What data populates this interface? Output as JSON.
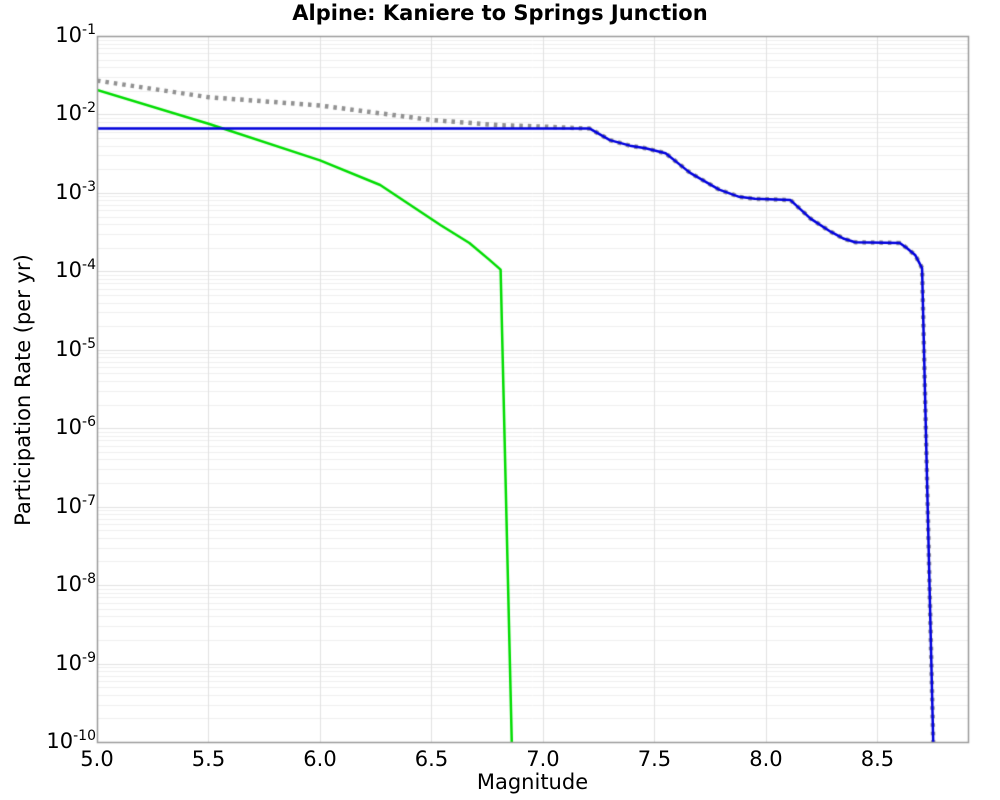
{
  "chart_data": {
    "type": "line",
    "title": "Alpine: Kaniere to Springs Junction",
    "xlabel": "Magnitude",
    "ylabel": "Participation Rate (per yr)",
    "xlim": [
      5.0,
      8.906
    ],
    "ylim": [
      1e-10,
      0.1
    ],
    "ylim_exp": [
      -10,
      -1
    ],
    "yscale": "log",
    "grid": true,
    "legend": "none",
    "x_ticks": [
      5.0,
      5.5,
      6.0,
      6.5,
      7.0,
      7.5,
      8.0,
      8.5
    ],
    "x_tick_labels": [
      "5.0",
      "5.5",
      "6.0",
      "6.5",
      "7.0",
      "7.5",
      "8.0",
      "8.5"
    ],
    "y_tick_base": "10",
    "y_tick_exponents": [
      -1,
      -2,
      -3,
      -4,
      -5,
      -6,
      -7,
      -8,
      -9,
      -10
    ],
    "colors": {
      "blue_series": "#0000dd",
      "green_series": "#00dd00",
      "gray_series": "#919191",
      "grid_major": "#e2e2e2",
      "grid_minor": "#f0f0f0",
      "frame": "#9a9a9a"
    },
    "series": [
      {
        "name": "gray-dotted-total",
        "color": "#919191",
        "style": "dotted",
        "line_width": 4.5,
        "points": [
          [
            5.0,
            0.027
          ],
          [
            5.5,
            0.0166
          ],
          [
            6.0,
            0.013
          ],
          [
            6.5,
            0.0085
          ],
          [
            6.8,
            0.0073
          ],
          [
            7.0,
            0.007
          ],
          [
            7.21,
            0.0066
          ],
          [
            7.3,
            0.0047
          ],
          [
            7.39,
            0.004
          ],
          [
            7.46,
            0.0037
          ],
          [
            7.55,
            0.0032
          ],
          [
            7.66,
            0.0018
          ],
          [
            7.79,
            0.0011
          ],
          [
            7.88,
            0.00089
          ],
          [
            7.95,
            0.00084
          ],
          [
            8.11,
            0.00081
          ],
          [
            8.2,
            0.00047
          ],
          [
            8.29,
            0.00032
          ],
          [
            8.35,
            0.00026
          ],
          [
            8.4,
            0.000235
          ],
          [
            8.6,
            0.00023
          ],
          [
            8.63,
            0.0002
          ],
          [
            8.67,
            0.00016
          ],
          [
            8.7,
            0.00011
          ],
          [
            8.75,
            1e-10
          ]
        ]
      },
      {
        "name": "green-solid",
        "color": "#00dd00",
        "style": "solid",
        "line_width": 2.5,
        "points": [
          [
            5.0,
            0.0205
          ],
          [
            5.5,
            0.0076
          ],
          [
            6.0,
            0.0026
          ],
          [
            6.27,
            0.00126
          ],
          [
            6.54,
            0.00039
          ],
          [
            6.67,
            0.00023
          ],
          [
            6.76,
            0.00014
          ],
          [
            6.81,
            0.000105
          ],
          [
            6.86,
            1e-10
          ]
        ]
      },
      {
        "name": "blue-solid",
        "color": "#0000dd",
        "style": "solid",
        "line_width": 2.5,
        "points": [
          [
            5.0,
            0.0066
          ],
          [
            7.21,
            0.0066
          ],
          [
            7.3,
            0.0047
          ],
          [
            7.39,
            0.004
          ],
          [
            7.46,
            0.0037
          ],
          [
            7.55,
            0.0032
          ],
          [
            7.66,
            0.0018
          ],
          [
            7.79,
            0.0011
          ],
          [
            7.88,
            0.00089
          ],
          [
            7.95,
            0.00084
          ],
          [
            8.11,
            0.00081
          ],
          [
            8.2,
            0.00047
          ],
          [
            8.29,
            0.00032
          ],
          [
            8.35,
            0.00026
          ],
          [
            8.4,
            0.000235
          ],
          [
            8.6,
            0.00023
          ],
          [
            8.63,
            0.0002
          ],
          [
            8.67,
            0.00016
          ],
          [
            8.7,
            0.00011
          ],
          [
            8.75,
            1e-10
          ]
        ]
      }
    ]
  }
}
